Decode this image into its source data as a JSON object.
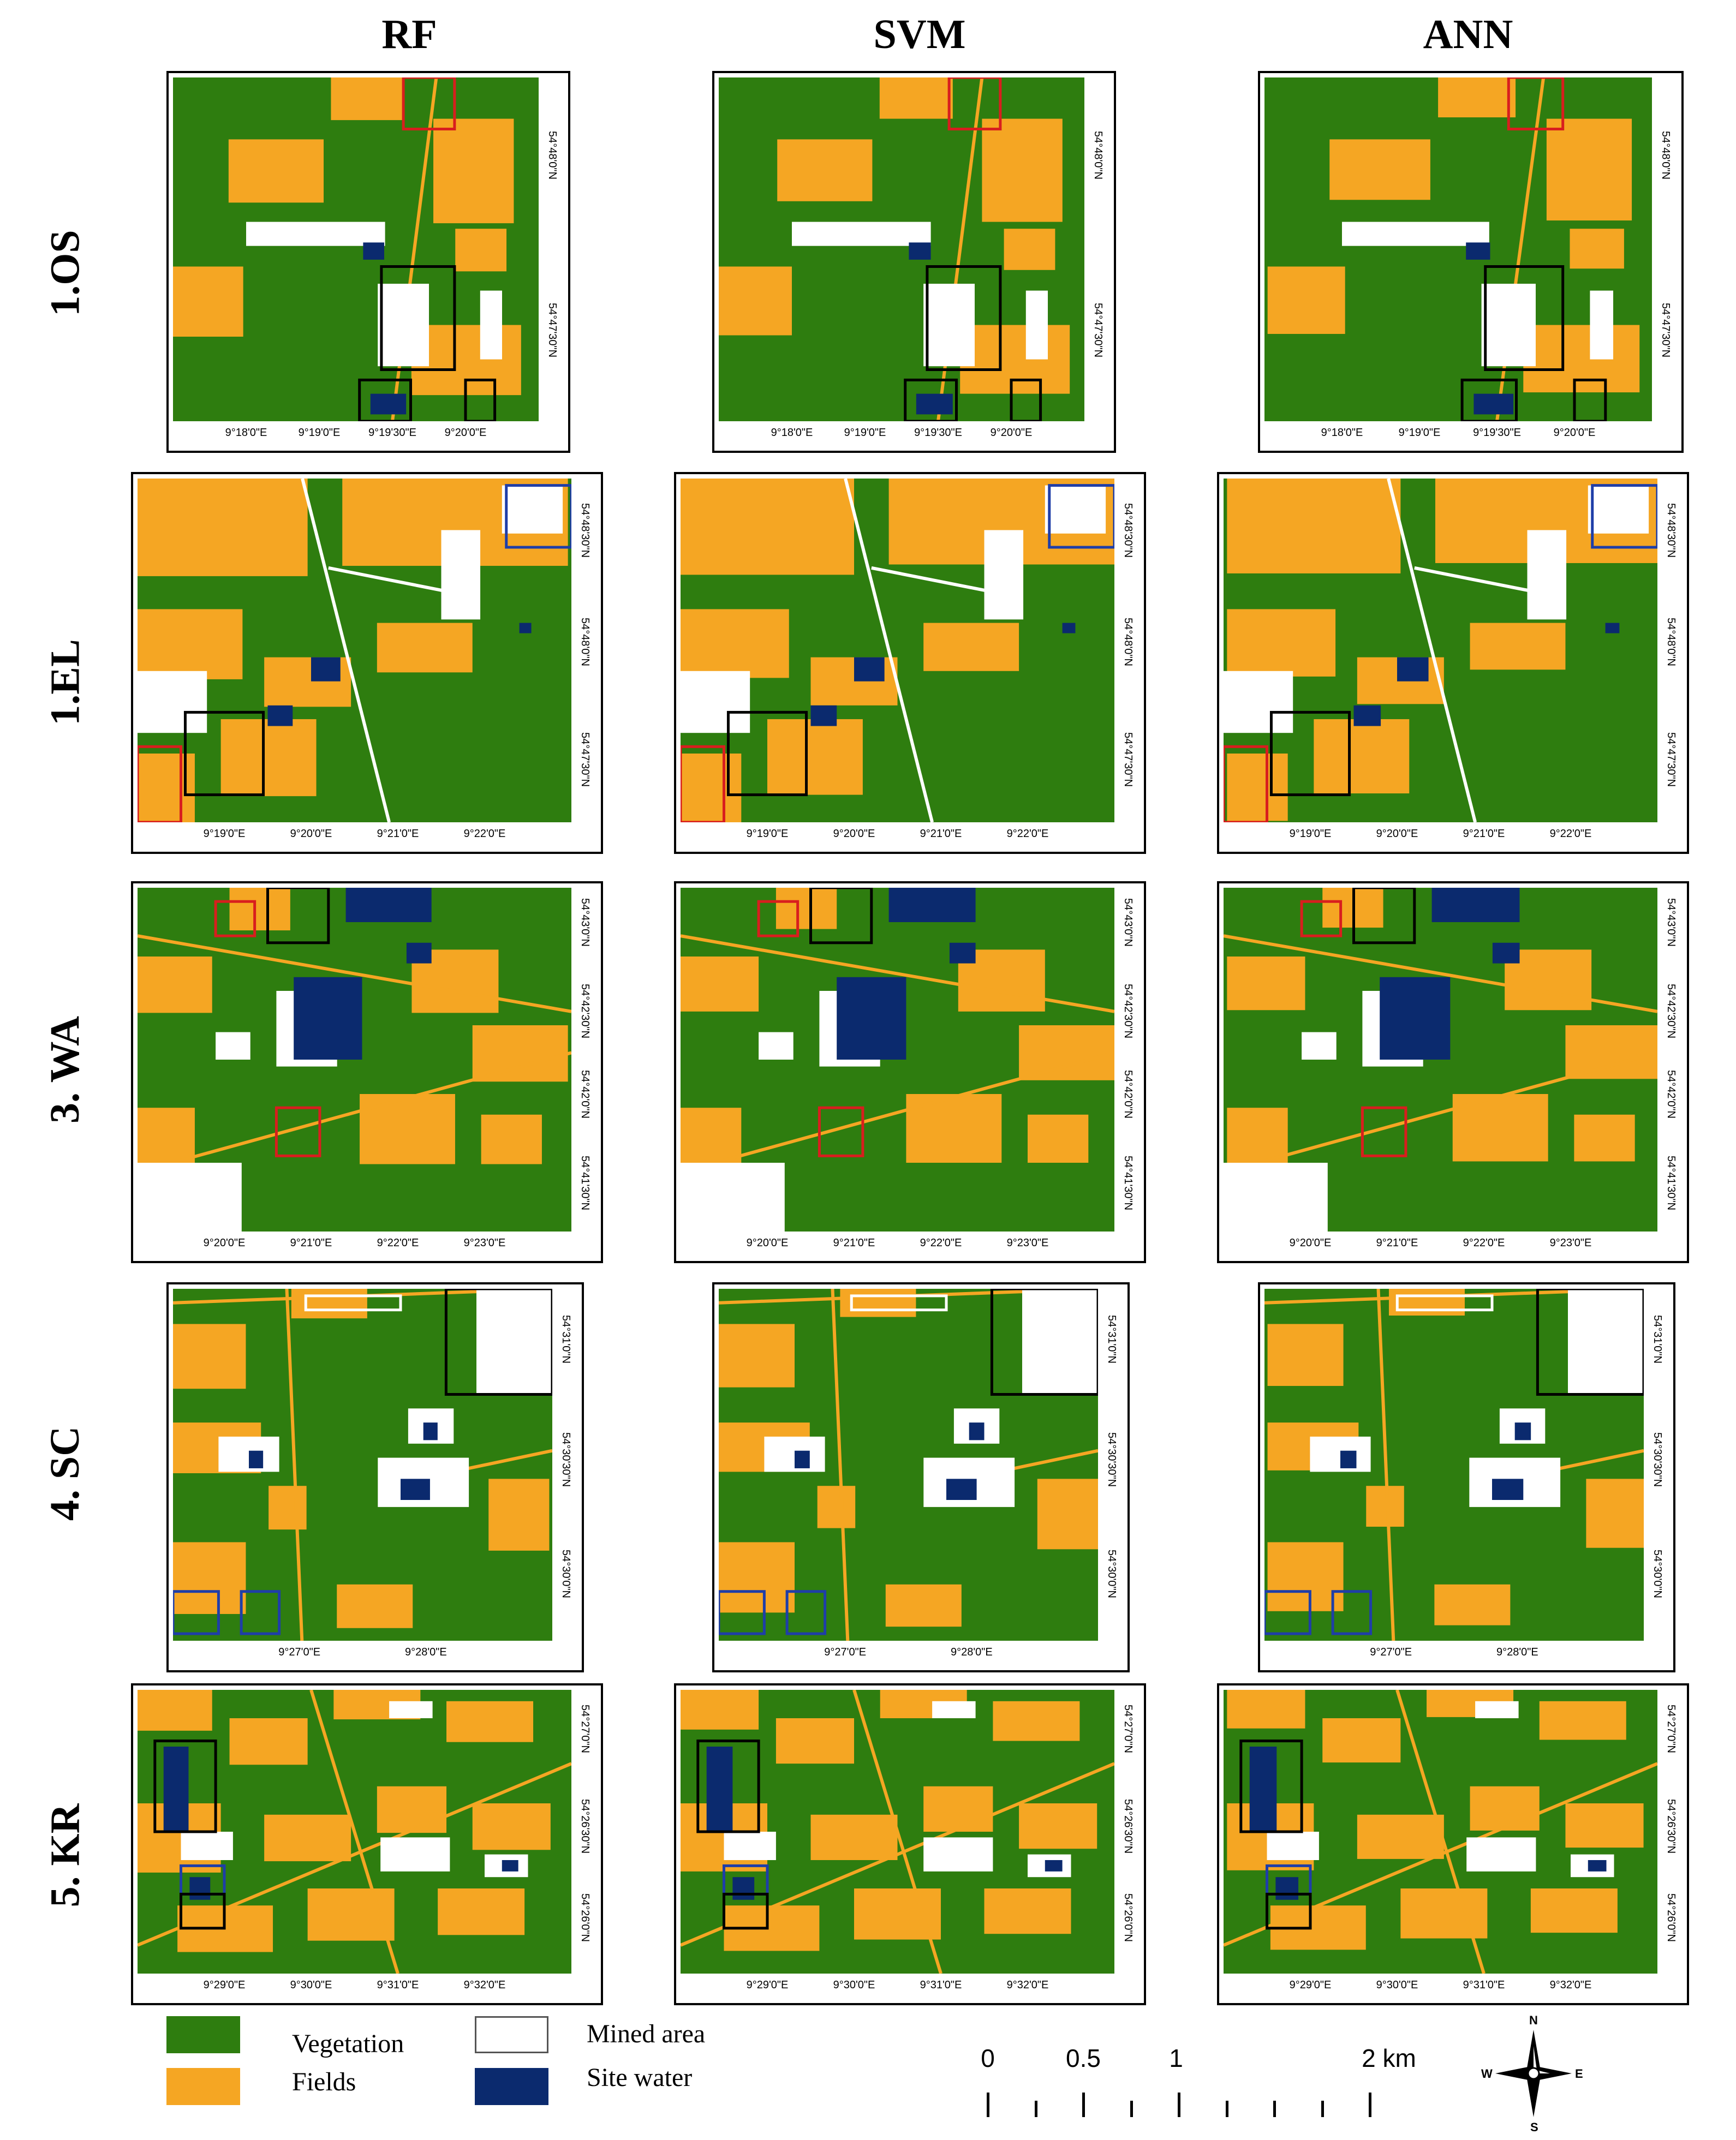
{
  "columns": [
    "RF",
    "SVM",
    "ANN"
  ],
  "rows": [
    "1.OS",
    "1.EL",
    "3. WA",
    "4. SC",
    "5. KR"
  ],
  "colors": {
    "vegetation": "#2e7d0f",
    "fields": "#f5a623",
    "mined": "#ffffff",
    "water": "#0b2a6e",
    "box_black": "#000000",
    "box_red": "#d81e1e",
    "box_blue": "#1f3ea8",
    "box_white": "#ffffff"
  },
  "ticks": {
    "OS": {
      "x": [
        "9°18'0\"E",
        "9°19'0\"E",
        "9°19'30\"E",
        "9°20'0\"E"
      ],
      "y": [
        "54°48'0\"N",
        "54°47'30\"N"
      ]
    },
    "EL": {
      "x": [
        "9°19'0\"E",
        "9°20'0\"E",
        "9°21'0\"E",
        "9°22'0\"E"
      ],
      "y": [
        "54°48'30\"N",
        "54°48'0\"N",
        "54°47'30\"N"
      ]
    },
    "WA": {
      "x": [
        "9°20'0\"E",
        "9°21'0\"E",
        "9°22'0\"E",
        "9°23'0\"E"
      ],
      "y": [
        "54°43'0\"N",
        "54°42'30\"N",
        "54°42'0\"N",
        "54°41'30\"N"
      ]
    },
    "SC": {
      "x": [
        "9°27'0\"E",
        "9°28'0\"E"
      ],
      "y": [
        "54°31'0\"N",
        "54°30'30\"N",
        "54°30'0\"N"
      ]
    },
    "KR": {
      "x": [
        "9°29'0\"E",
        "9°30'0\"E",
        "9°31'0\"E",
        "9°32'0\"E"
      ],
      "y": [
        "54°27'0\"N",
        "54°26'30\"N",
        "54°26'0\"N"
      ]
    }
  },
  "legend": {
    "vegetation": "Vegetation",
    "fields": "Fields",
    "mined": "Mined area",
    "water": "Site water"
  },
  "scale": {
    "labels": [
      "0",
      "0.5",
      "1",
      "2 km"
    ],
    "values": [
      0,
      0.5,
      1,
      2
    ]
  },
  "compass": {
    "n": "N",
    "s": "S",
    "e": "E",
    "w": "W"
  }
}
